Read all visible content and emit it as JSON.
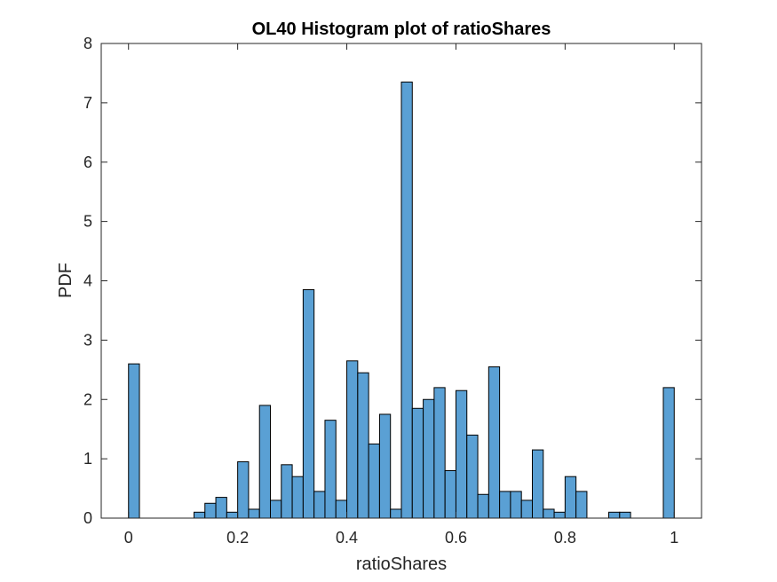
{
  "chart_data": {
    "type": "bar",
    "title": "OL40 Histogram plot of ratioShares",
    "xlabel": "ratioShares",
    "ylabel": "PDF",
    "xlim": [
      -0.05,
      1.05
    ],
    "ylim": [
      0,
      8
    ],
    "bin_width": 0.02,
    "x_ticks": [
      0,
      0.2,
      0.4,
      0.6,
      0.8,
      1
    ],
    "x_tick_labels": [
      "0",
      "0.2",
      "0.4",
      "0.6",
      "0.8",
      "1"
    ],
    "y_ticks": [
      0,
      1,
      2,
      3,
      4,
      5,
      6,
      7,
      8
    ],
    "y_tick_labels": [
      "0",
      "1",
      "2",
      "3",
      "4",
      "5",
      "6",
      "7",
      "8"
    ],
    "bin_starts": [
      0,
      0.02,
      0.04,
      0.06,
      0.08,
      0.1,
      0.12,
      0.14,
      0.16,
      0.18,
      0.2,
      0.22,
      0.24,
      0.26,
      0.28,
      0.3,
      0.32,
      0.34,
      0.36,
      0.38,
      0.4,
      0.42,
      0.44,
      0.46,
      0.48,
      0.5,
      0.52,
      0.54,
      0.56,
      0.58,
      0.6,
      0.62,
      0.64,
      0.66,
      0.68,
      0.7,
      0.72,
      0.74,
      0.76,
      0.78,
      0.8,
      0.82,
      0.84,
      0.86,
      0.88,
      0.9,
      0.92,
      0.94,
      0.96,
      0.98
    ],
    "values": [
      2.6,
      0,
      0,
      0,
      0,
      0,
      0.1,
      0.25,
      0.35,
      0.1,
      0.95,
      0.15,
      1.9,
      0.3,
      0.9,
      0.7,
      3.85,
      0.45,
      1.65,
      0.3,
      2.65,
      2.45,
      1.25,
      1.75,
      0.15,
      7.35,
      1.85,
      2.0,
      2.2,
      0.8,
      2.15,
      1.4,
      0.4,
      2.55,
      0.45,
      0.45,
      0.3,
      1.15,
      0.15,
      0.1,
      0.7,
      0.45,
      0,
      0,
      0.1,
      0.1,
      0,
      0,
      0,
      2.2
    ],
    "bar_color": "#5aa0d4",
    "edge_color": "#000000",
    "grid": false,
    "box": true
  }
}
